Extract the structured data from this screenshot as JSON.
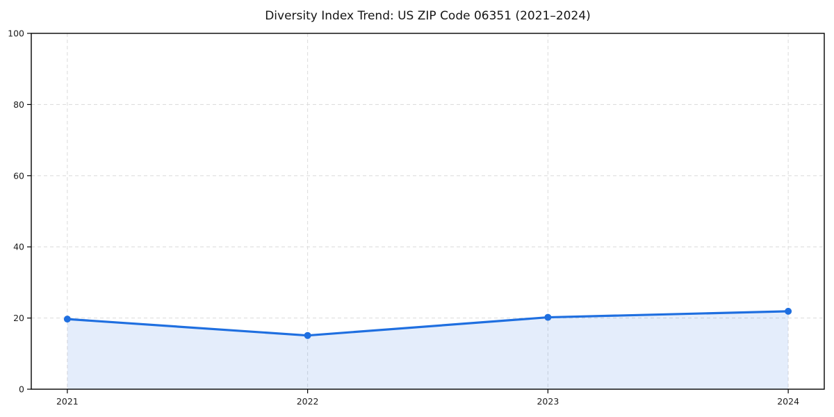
{
  "chart_data": {
    "type": "area",
    "title": "Diversity Index Trend: US ZIP Code 06351 (2021–2024)",
    "categories": [
      "2021",
      "2022",
      "2023",
      "2024"
    ],
    "series": [
      {
        "name": "Diversity Index",
        "values": [
          19.7,
          15.1,
          20.2,
          21.9
        ]
      }
    ],
    "xlabel": "",
    "ylabel": "",
    "ylim": [
      0,
      100
    ],
    "yticks": [
      0,
      20,
      40,
      60,
      80,
      100
    ],
    "grid": "dashed-both-axes",
    "legend": "none",
    "colors": {
      "line": "#1f6fe0",
      "marker": "#1f6fe0",
      "fill": "#1f6fe0",
      "fill_opacity": 0.12,
      "gridline": "#dedede",
      "axis": "#000000",
      "text": "#1c1c1c",
      "background": "#ffffff"
    }
  }
}
